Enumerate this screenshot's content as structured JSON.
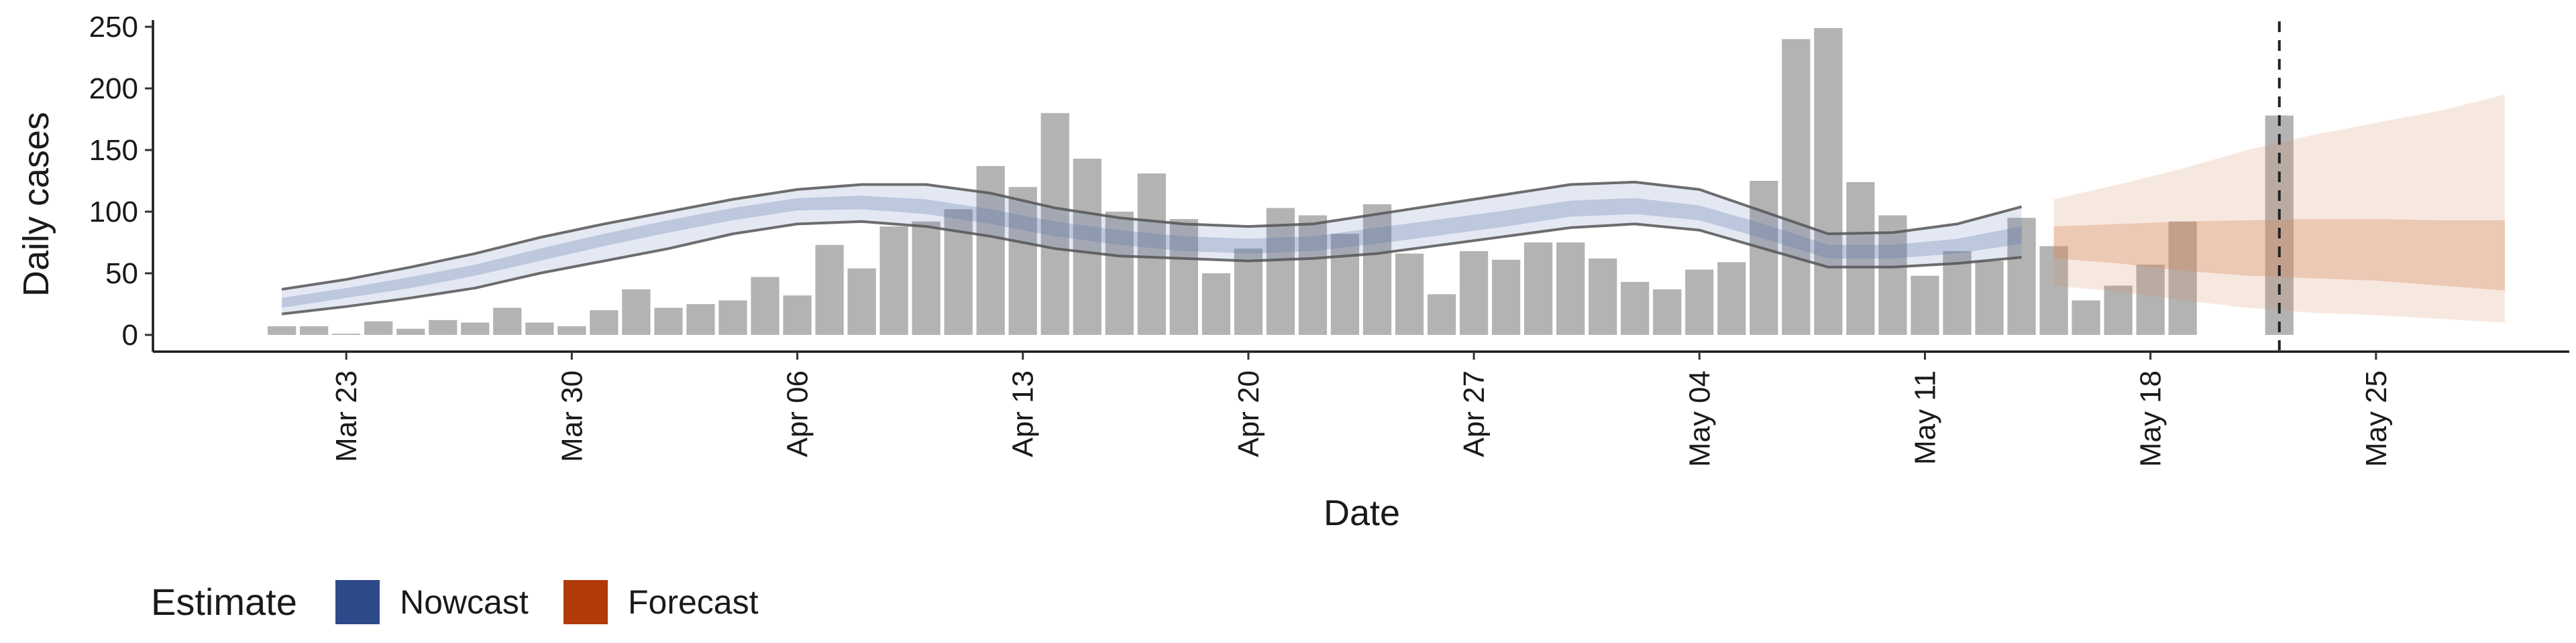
{
  "chart_data": {
    "type": "bar",
    "xlabel": "Date",
    "ylabel": "Daily cases",
    "ylim": [
      0,
      250
    ],
    "yticks": [
      0,
      50,
      100,
      150,
      200,
      250
    ],
    "xtick_labels": [
      "Mar 23",
      "Mar 30",
      "Apr 06",
      "Apr 13",
      "Apr 20",
      "Apr 27",
      "May 04",
      "May 11",
      "May 18",
      "May 25"
    ],
    "xtick_day_index": [
      2,
      9,
      16,
      23,
      30,
      37,
      44,
      51,
      58,
      65
    ],
    "xlim_day_index": [
      -4,
      71
    ],
    "start_date": "Mar 21",
    "forecast_date_line": "May 22",
    "legend": {
      "title": "Estimate",
      "position": "bottom-left",
      "entries": [
        {
          "name": "Nowcast",
          "color": "#2e4a8a"
        },
        {
          "name": "Forecast",
          "color": "#b03a0a"
        }
      ]
    },
    "bars_daily_cases": [
      7,
      7,
      1,
      11,
      5,
      12,
      10,
      22,
      10,
      7,
      20,
      37,
      22,
      25,
      28,
      47,
      32,
      73,
      54,
      88,
      92,
      102,
      137,
      120,
      180,
      143,
      100,
      131,
      94,
      50,
      70,
      103,
      97,
      82,
      106,
      66,
      33,
      68,
      61,
      75,
      75,
      62,
      43,
      37,
      53,
      59,
      125,
      240,
      249,
      124,
      97,
      48,
      68,
      60,
      95,
      72,
      28,
      40,
      57,
      92
    ],
    "forecast_day_bar": {
      "day_index": 62,
      "value": 178
    },
    "nowcast": {
      "day_index": [
        0,
        2,
        4,
        6,
        8,
        10,
        12,
        14,
        16,
        18,
        20,
        22,
        24,
        26,
        28,
        30,
        32,
        34,
        36,
        38,
        40,
        42,
        44,
        46,
        48,
        50,
        52,
        54
      ],
      "outer_upper": [
        37,
        45,
        55,
        66,
        79,
        90,
        100,
        110,
        118,
        122,
        122,
        115,
        103,
        95,
        90,
        88,
        90,
        98,
        106,
        114,
        122,
        124,
        118,
        100,
        82,
        83,
        90,
        104
      ],
      "inner_upper": [
        30,
        38,
        47,
        57,
        70,
        82,
        93,
        103,
        111,
        113,
        110,
        102,
        92,
        85,
        80,
        78,
        80,
        87,
        94,
        101,
        109,
        111,
        105,
        90,
        73,
        73,
        78,
        88
      ],
      "inner_lower": [
        22,
        30,
        38,
        48,
        60,
        72,
        83,
        93,
        101,
        102,
        98,
        90,
        80,
        73,
        68,
        66,
        68,
        74,
        81,
        88,
        96,
        98,
        93,
        78,
        62,
        62,
        66,
        74
      ],
      "outer_lower": [
        17,
        23,
        30,
        38,
        50,
        60,
        70,
        82,
        90,
        92,
        88,
        80,
        70,
        64,
        62,
        60,
        62,
        66,
        73,
        80,
        87,
        90,
        85,
        70,
        55,
        55,
        58,
        63
      ]
    },
    "forecast": {
      "day_index": [
        55,
        57,
        59,
        61,
        63,
        65,
        67,
        69
      ],
      "outer_upper": [
        110,
        122,
        135,
        150,
        162,
        172,
        182,
        195
      ],
      "inner_upper": [
        88,
        90,
        92,
        93,
        94,
        94,
        93,
        93
      ],
      "inner_lower": [
        62,
        58,
        52,
        48,
        46,
        44,
        40,
        36
      ],
      "outer_lower": [
        40,
        35,
        28,
        22,
        18,
        16,
        13,
        10
      ]
    },
    "colors": {
      "bar": "#b3b3b3",
      "nowcast_band": "#5a72ad",
      "forecast_band": "#d78a5e",
      "band_line": "#555555"
    }
  }
}
